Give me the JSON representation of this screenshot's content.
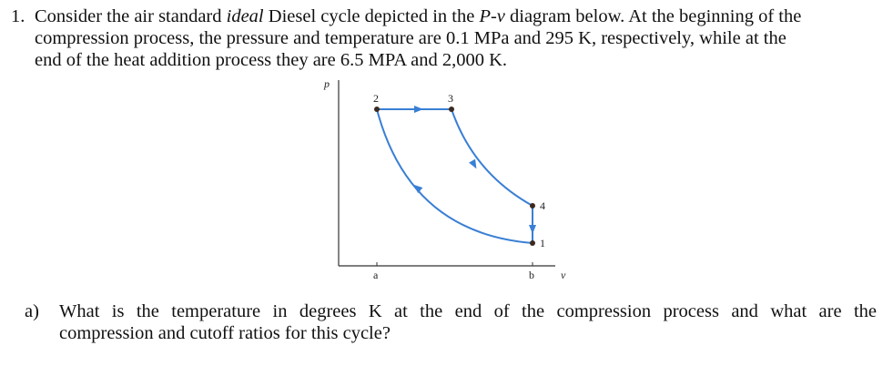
{
  "problem": {
    "number": "1.",
    "line1_pre": "Consider the air standard ",
    "line1_italic": "ideal",
    "line1_post": " Diesel cycle depicted in the ",
    "line1_pv": "P-v",
    "line1_end": " diagram below. At the beginning of the",
    "line2": "compression process, the pressure and temperature are 0.1 MPa and 295 K, respectively, while at the",
    "line3": "end of the heat addition process they are 6.5 MPA and 2,000 K."
  },
  "diagram": {
    "y_axis_label": "p",
    "x_axis_label": "v",
    "point_labels": {
      "p1": "1",
      "p2": "2",
      "p3": "3",
      "p4": "4"
    },
    "tick_labels": {
      "a": "a",
      "b": "b"
    },
    "curve_color": "#3a7fd5",
    "point_color": "#3a2a20"
  },
  "question": {
    "label": "a)",
    "line1": "What is the temperature in degrees K at the end of the compression process and what are the",
    "line2": "compression and cutoff ratios for this cycle?"
  }
}
